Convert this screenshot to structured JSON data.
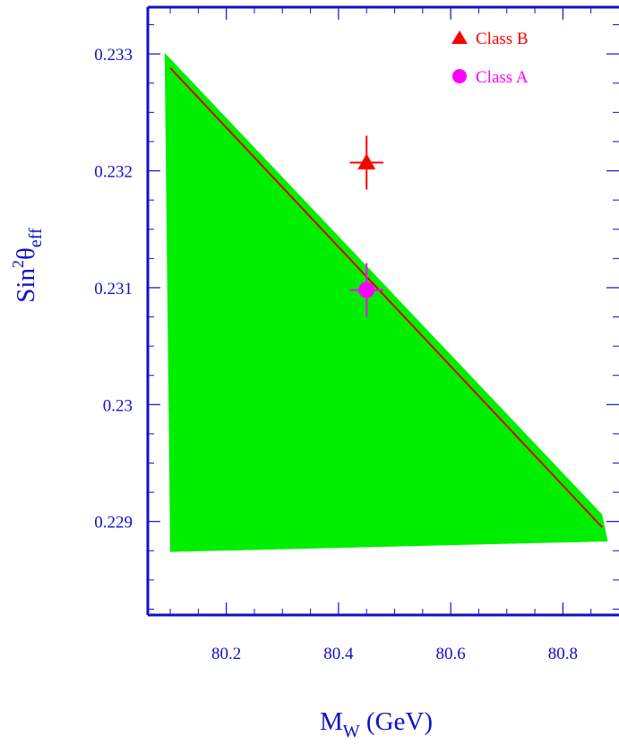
{
  "chart_data": {
    "type": "scatter",
    "title": "",
    "xlabel": {
      "main": "M",
      "sub": "W",
      "rest": " (GeV)"
    },
    "ylabel": {
      "main": "Sin",
      "sup": "2",
      "theta": "θ",
      "sub": "eff"
    },
    "xlim": [
      80.06,
      80.9
    ],
    "ylim": [
      0.2282,
      0.2334
    ],
    "xticks": [
      80.2,
      80.4,
      80.6,
      80.8
    ],
    "xtick_labels": [
      "80.2",
      "80.4",
      "80.6",
      "80.8"
    ],
    "yticks": [
      0.229,
      0.23,
      0.231,
      0.232,
      0.233
    ],
    "ytick_labels": [
      "0.229",
      "0.23",
      "0.231",
      "0.232",
      "0.233"
    ],
    "band": {
      "color": "#00ee00",
      "upper": [
        [
          80.09,
          0.23301
        ],
        [
          80.87,
          0.22906
        ]
      ],
      "lower": [
        [
          80.1,
          0.22874
        ],
        [
          80.88,
          0.22883
        ]
      ],
      "polygon": [
        [
          80.09,
          0.23301
        ],
        [
          80.87,
          0.22906
        ],
        [
          80.88,
          0.22883
        ],
        [
          80.1,
          0.22874
        ]
      ]
    },
    "central_line": {
      "color": "#dd0000",
      "points": [
        [
          80.1,
          0.23288
        ],
        [
          80.87,
          0.22895
        ]
      ]
    },
    "series": [
      {
        "name": "Class B",
        "marker": "triangle",
        "color": "#ff0000",
        "x": 80.45,
        "y": 0.23207,
        "xerr": 0.03,
        "yerr": 0.00023
      },
      {
        "name": "Class A",
        "marker": "circle",
        "color": "#ff00ff",
        "x": 80.45,
        "y": 0.23098,
        "xerr": 0.03,
        "yerr": 0.00023
      }
    ],
    "legend": {
      "position": "top-right",
      "entries": [
        "Class B",
        "Class A"
      ]
    },
    "colors": {
      "axis": "#1010c8",
      "text": "#1010c8"
    }
  }
}
